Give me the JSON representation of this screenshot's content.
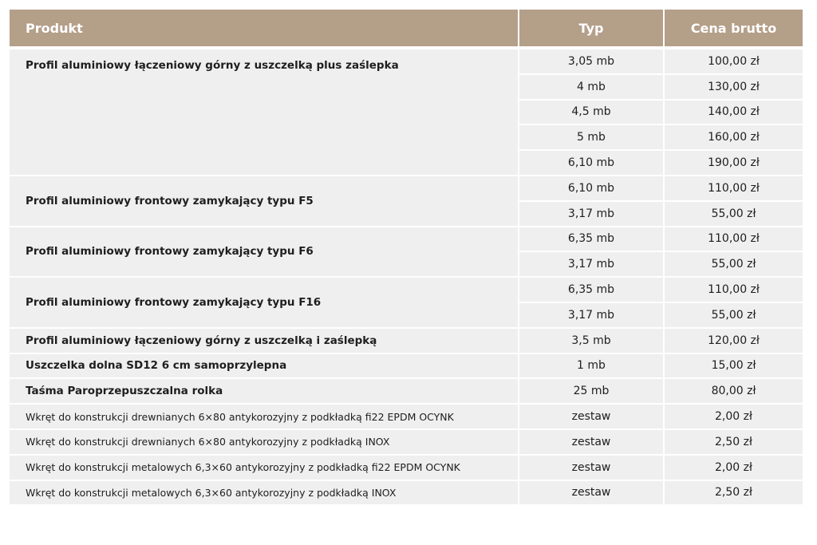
{
  "header": [
    "Produkt",
    "Typ",
    "Cena brutto"
  ],
  "groups": [
    {
      "product": "Profil aluminiowy łączeniowy górny z uszczelką plus zaślepka",
      "items": [
        [
          "3,05 mb",
          "100,00 zł"
        ],
        [
          "4 mb",
          "130,00 zł"
        ],
        [
          "4,5 mb",
          "140,00 zł"
        ],
        [
          "5 mb",
          "160,00 zł"
        ],
        [
          "6,10 mb",
          "190,00 zł"
        ]
      ]
    },
    {
      "product": "Profil aluminiowy frontowy zamykający typu F5",
      "items": [
        [
          "6,10 mb",
          "110,00 zł"
        ],
        [
          "3,17 mb",
          "55,00 zł"
        ]
      ]
    },
    {
      "product": "Profil aluminiowy frontowy zamykający typu F6",
      "items": [
        [
          "6,35 mb",
          "110,00 zł"
        ],
        [
          "3,17 mb",
          "55,00 zł"
        ]
      ]
    },
    {
      "product": "Profil aluminiowy frontowy zamykający typu F16",
      "items": [
        [
          "6,35 mb",
          "110,00 zł"
        ],
        [
          "3,17 mb",
          "55,00 zł"
        ]
      ]
    },
    {
      "product": "Profil aluminiowy łączeniowy górny z uszczelką i zaślepką",
      "items": [
        [
          "3,5 mb",
          "120,00 zł"
        ]
      ]
    },
    {
      "product": "Uszczelka dolna SD12 6 cm samoprzylepna",
      "items": [
        [
          "1 mb",
          "15,00 zł"
        ]
      ]
    },
    {
      "product": "Taśma Paroprzepuszczalna rolka",
      "items": [
        [
          "25 mb",
          "80,00 zł"
        ]
      ]
    },
    {
      "product": "Wkręt do konstrukcji drewnianych 6×80 antykorozyjny z podkładką fi22 EPDM OCYNK",
      "items": [
        [
          "zestaw",
          "2,00 zł"
        ]
      ]
    },
    {
      "product": "Wkręt do konstrukcji drewnianych 6×80 antykorozyjny z podkładką INOX",
      "items": [
        [
          "zestaw",
          "2,50 zł"
        ]
      ]
    },
    {
      "product": "Wkręt do konstrukcji metalowych 6,3×60 antykorozyjny z podkładką fi22 EPDM OCYNK",
      "items": [
        [
          "zestaw",
          "2,00 zł"
        ]
      ]
    },
    {
      "product": "Wkręt do konstrukcji metalowych 6,3×60 antykorozyjny z podkładką INOX",
      "items": [
        [
          "zestaw",
          "2,50 zł"
        ]
      ]
    }
  ]
}
